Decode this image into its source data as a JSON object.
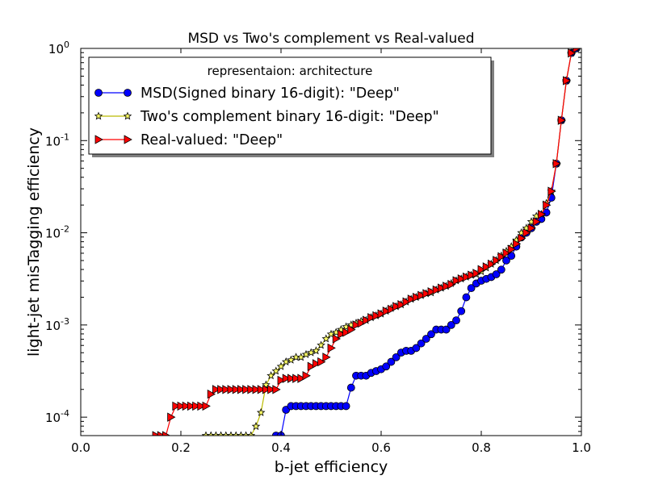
{
  "chart_data": {
    "type": "line",
    "title": "MSD vs Two's complement vs Real-valued",
    "xlabel": "b-jet efficiency",
    "ylabel": "light-jet misTagging efficiency",
    "xlim": [
      0.0,
      1.0
    ],
    "ylim_exponent": [
      -4.2,
      0
    ],
    "yscale": "log",
    "x_ticks": [
      "0.0",
      "0.2",
      "0.4",
      "0.6",
      "0.8",
      "1.0"
    ],
    "y_tick_base": "10",
    "y_tick_exponents": [
      "-4",
      "-3",
      "-2",
      "-1",
      "0"
    ],
    "legend": {
      "title": "representaion: architecture",
      "placement": "top-left"
    },
    "series": [
      {
        "name": "MSD(Signed binary 16-digit): \"Deep\"",
        "color": "#0000ff",
        "marker": "circle",
        "x": [
          0.39,
          0.4,
          0.41,
          0.42,
          0.43,
          0.44,
          0.45,
          0.46,
          0.47,
          0.48,
          0.49,
          0.5,
          0.51,
          0.52,
          0.53,
          0.54,
          0.55,
          0.56,
          0.57,
          0.58,
          0.59,
          0.6,
          0.61,
          0.62,
          0.63,
          0.64,
          0.65,
          0.66,
          0.67,
          0.68,
          0.69,
          0.7,
          0.71,
          0.72,
          0.73,
          0.74,
          0.75,
          0.76,
          0.77,
          0.78,
          0.79,
          0.8,
          0.81,
          0.82,
          0.83,
          0.84,
          0.85,
          0.86,
          0.87,
          0.88,
          0.89,
          0.9,
          0.91,
          0.92,
          0.93,
          0.94,
          0.95,
          0.96,
          0.97,
          0.98,
          0.99
        ],
        "y": [
          -4.2,
          -4.2,
          -3.92,
          -3.88,
          -3.88,
          -3.88,
          -3.88,
          -3.88,
          -3.88,
          -3.88,
          -3.88,
          -3.88,
          -3.88,
          -3.88,
          -3.88,
          -3.68,
          -3.55,
          -3.55,
          -3.55,
          -3.52,
          -3.5,
          -3.48,
          -3.45,
          -3.4,
          -3.35,
          -3.3,
          -3.28,
          -3.28,
          -3.25,
          -3.2,
          -3.15,
          -3.1,
          -3.05,
          -3.05,
          -3.05,
          -3.0,
          -2.95,
          -2.85,
          -2.7,
          -2.6,
          -2.55,
          -2.52,
          -2.5,
          -2.48,
          -2.45,
          -2.4,
          -2.3,
          -2.25,
          -2.15,
          -2.05,
          -2.0,
          -1.95,
          -1.88,
          -1.85,
          -1.78,
          -1.62,
          -1.25,
          -0.78,
          -0.35,
          -0.05,
          0
        ]
      },
      {
        "name": "Two's complement binary 16-digit: \"Deep\"",
        "color": "#ffff66",
        "marker": "star",
        "x": [
          0.25,
          0.26,
          0.27,
          0.28,
          0.29,
          0.3,
          0.31,
          0.32,
          0.33,
          0.34,
          0.35,
          0.36,
          0.37,
          0.38,
          0.39,
          0.4,
          0.41,
          0.42,
          0.43,
          0.44,
          0.45,
          0.46,
          0.47,
          0.48,
          0.49,
          0.5,
          0.51,
          0.52,
          0.53,
          0.54,
          0.55,
          0.56,
          0.57,
          0.58,
          0.59,
          0.6,
          0.61,
          0.62,
          0.63,
          0.64,
          0.65,
          0.66,
          0.67,
          0.68,
          0.69,
          0.7,
          0.71,
          0.72,
          0.73,
          0.74,
          0.75,
          0.76,
          0.77,
          0.78,
          0.79,
          0.8,
          0.81,
          0.82,
          0.83,
          0.84,
          0.85,
          0.86,
          0.87,
          0.88,
          0.89,
          0.9,
          0.91,
          0.92,
          0.93,
          0.94,
          0.95,
          0.96,
          0.97,
          0.98,
          0.99
        ],
        "y": [
          -4.2,
          -4.2,
          -4.2,
          -4.2,
          -4.2,
          -4.2,
          -4.2,
          -4.2,
          -4.2,
          -4.2,
          -4.1,
          -3.95,
          -3.65,
          -3.55,
          -3.5,
          -3.45,
          -3.4,
          -3.38,
          -3.35,
          -3.35,
          -3.32,
          -3.3,
          -3.28,
          -3.22,
          -3.15,
          -3.1,
          -3.08,
          -3.05,
          -3.02,
          -3.0,
          -2.98,
          -2.96,
          -2.95,
          -2.92,
          -2.9,
          -2.88,
          -2.85,
          -2.82,
          -2.8,
          -2.78,
          -2.75,
          -2.72,
          -2.7,
          -2.68,
          -2.66,
          -2.65,
          -2.62,
          -2.6,
          -2.58,
          -2.55,
          -2.52,
          -2.5,
          -2.48,
          -2.46,
          -2.45,
          -2.42,
          -2.38,
          -2.34,
          -2.3,
          -2.25,
          -2.2,
          -2.15,
          -2.08,
          -2.0,
          -1.95,
          -1.88,
          -1.82,
          -1.8,
          -1.68,
          -1.55,
          -1.25,
          -0.78,
          -0.35,
          -0.05,
          0
        ]
      },
      {
        "name": "Real-valued: \"Deep\"",
        "color": "#ff0000",
        "marker": "triangle-right",
        "x": [
          0.15,
          0.16,
          0.17,
          0.18,
          0.19,
          0.2,
          0.21,
          0.22,
          0.23,
          0.24,
          0.25,
          0.26,
          0.27,
          0.28,
          0.29,
          0.3,
          0.31,
          0.32,
          0.33,
          0.34,
          0.35,
          0.36,
          0.37,
          0.38,
          0.39,
          0.4,
          0.41,
          0.42,
          0.43,
          0.44,
          0.45,
          0.46,
          0.47,
          0.48,
          0.49,
          0.5,
          0.51,
          0.52,
          0.53,
          0.54,
          0.55,
          0.56,
          0.57,
          0.58,
          0.59,
          0.6,
          0.61,
          0.62,
          0.63,
          0.64,
          0.65,
          0.66,
          0.67,
          0.68,
          0.69,
          0.7,
          0.71,
          0.72,
          0.73,
          0.74,
          0.75,
          0.76,
          0.77,
          0.78,
          0.79,
          0.8,
          0.81,
          0.82,
          0.83,
          0.84,
          0.85,
          0.86,
          0.87,
          0.88,
          0.89,
          0.9,
          0.91,
          0.92,
          0.93,
          0.94,
          0.95,
          0.96,
          0.97,
          0.98,
          0.99
        ],
        "y": [
          -4.2,
          -4.2,
          -4.2,
          -4.0,
          -3.88,
          -3.88,
          -3.88,
          -3.88,
          -3.88,
          -3.88,
          -3.88,
          -3.75,
          -3.7,
          -3.7,
          -3.7,
          -3.7,
          -3.7,
          -3.7,
          -3.7,
          -3.7,
          -3.7,
          -3.7,
          -3.7,
          -3.7,
          -3.7,
          -3.6,
          -3.58,
          -3.58,
          -3.58,
          -3.58,
          -3.55,
          -3.45,
          -3.42,
          -3.4,
          -3.35,
          -3.25,
          -3.15,
          -3.1,
          -3.08,
          -3.05,
          -3.0,
          -2.98,
          -2.95,
          -2.92,
          -2.9,
          -2.88,
          -2.85,
          -2.83,
          -2.8,
          -2.78,
          -2.75,
          -2.72,
          -2.7,
          -2.68,
          -2.66,
          -2.64,
          -2.62,
          -2.6,
          -2.58,
          -2.56,
          -2.52,
          -2.5,
          -2.48,
          -2.46,
          -2.44,
          -2.4,
          -2.37,
          -2.34,
          -2.3,
          -2.26,
          -2.22,
          -2.18,
          -2.12,
          -2.06,
          -2.0,
          -1.95,
          -1.88,
          -1.8,
          -1.7,
          -1.55,
          -1.25,
          -0.78,
          -0.35,
          -0.05,
          0
        ]
      }
    ]
  }
}
